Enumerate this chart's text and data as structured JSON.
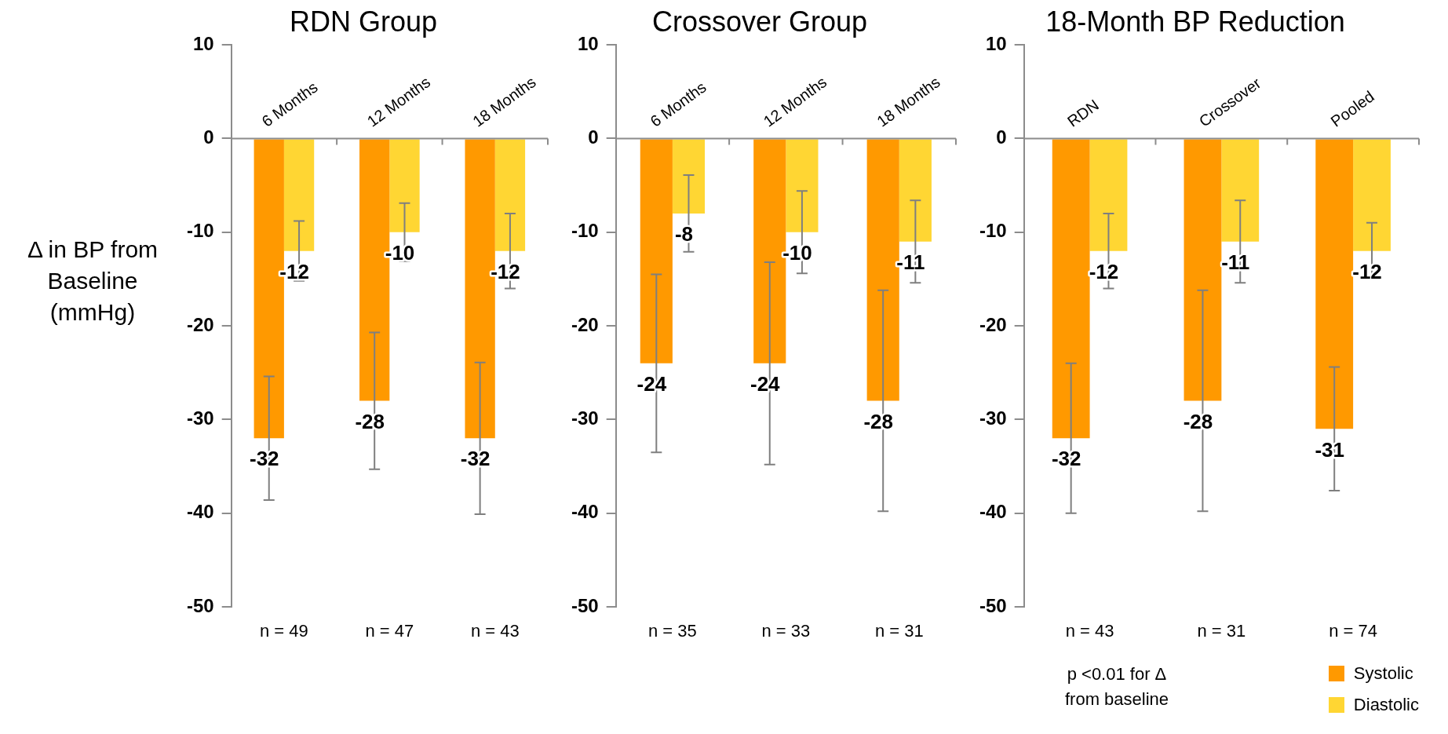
{
  "chart_data": [
    {
      "type": "bar",
      "title": "RDN Group",
      "ylabel": "Δ  in BP from Baseline (mmHg)",
      "categories": [
        "6 Months",
        "12 Months",
        "18 Months"
      ],
      "series": [
        {
          "color": "#ff9900",
          "values": [
            -32,
            -28,
            -32
          ],
          "errors": [
            6.6,
            7.3,
            8.1
          ]
        },
        {
          "color": "#ffd633",
          "values": [
            -12,
            -10,
            -12
          ],
          "errors": [
            3.2,
            3.1,
            4
          ]
        }
      ],
      "ylim": [
        -50,
        10
      ],
      "yticks": [
        -50,
        -40,
        -30,
        -20,
        -10,
        0,
        10
      ],
      "grid": false,
      "data_labels": true,
      "annotations": [
        "n = 49",
        "n = 47",
        "n = 43"
      ]
    },
    {
      "type": "bar",
      "title": "Crossover Group",
      "categories": [
        "6 Months",
        "12 Months",
        "18 Months"
      ],
      "series": [
        {
          "color": "#ff9900",
          "values": [
            -24,
            -24,
            -28
          ],
          "errors": [
            9.5,
            10.8,
            11.8
          ]
        },
        {
          "color": "#ffd633",
          "values": [
            -8,
            -10,
            -11
          ],
          "errors": [
            4.1,
            4.4,
            4.4
          ]
        }
      ],
      "ylim": [
        -50,
        10
      ],
      "yticks": [
        -50,
        -40,
        -30,
        -20,
        -10,
        0,
        10
      ],
      "grid": false,
      "data_labels": true,
      "annotations": [
        "n = 35",
        "n = 33",
        "n = 31"
      ]
    },
    {
      "type": "bar",
      "title": "18-Month BP Reduction",
      "categories": [
        "RDN",
        "Crossover",
        "Pooled"
      ],
      "series": [
        {
          "name": "Systolic",
          "color": "#ff9900",
          "values": [
            -32,
            -28,
            -31
          ],
          "errors": [
            8,
            11.8,
            6.6
          ]
        },
        {
          "name": "Diastolic",
          "color": "#ffd633",
          "values": [
            -12,
            -11,
            -12
          ],
          "errors": [
            4,
            4.4,
            3
          ]
        }
      ],
      "ylim": [
        -50,
        10
      ],
      "yticks": [
        -50,
        -40,
        -30,
        -20,
        -10,
        0,
        10
      ],
      "grid": false,
      "data_labels": true,
      "legend": "bottom right",
      "annotations": [
        "n = 43",
        "n = 31",
        "n = 74",
        "p <0.01 for Δ from baseline"
      ]
    }
  ]
}
